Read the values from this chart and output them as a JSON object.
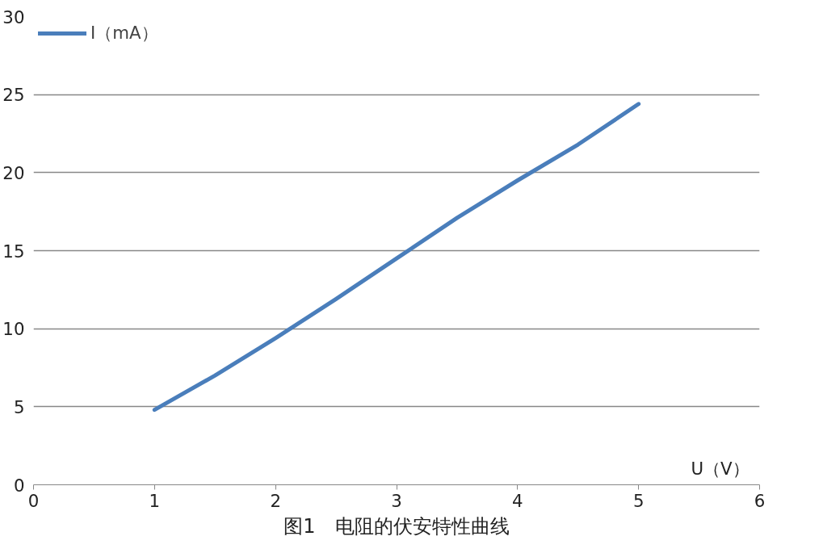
{
  "chart_data": {
    "type": "line",
    "title": "图1　电阻的伏安特性曲线",
    "xlabel": "U（V）",
    "x": [
      1,
      1.5,
      2,
      2.5,
      3,
      3.5,
      4,
      4.5,
      5
    ],
    "series": [
      {
        "name": "I（mA）",
        "color": "#4a7ebb",
        "values": [
          4.8,
          7.0,
          9.4,
          11.9,
          14.5,
          17.1,
          19.5,
          21.8,
          24.4
        ]
      }
    ],
    "xlim": [
      0,
      6
    ],
    "xticks": [
      0,
      1,
      2,
      3,
      4,
      5,
      6
    ],
    "ylim": [
      0,
      30
    ],
    "yticks": [
      0,
      5,
      10,
      15,
      20,
      25,
      30
    ],
    "grid": "y",
    "legend": "top left",
    "marker": "none",
    "line_style": "solid"
  }
}
